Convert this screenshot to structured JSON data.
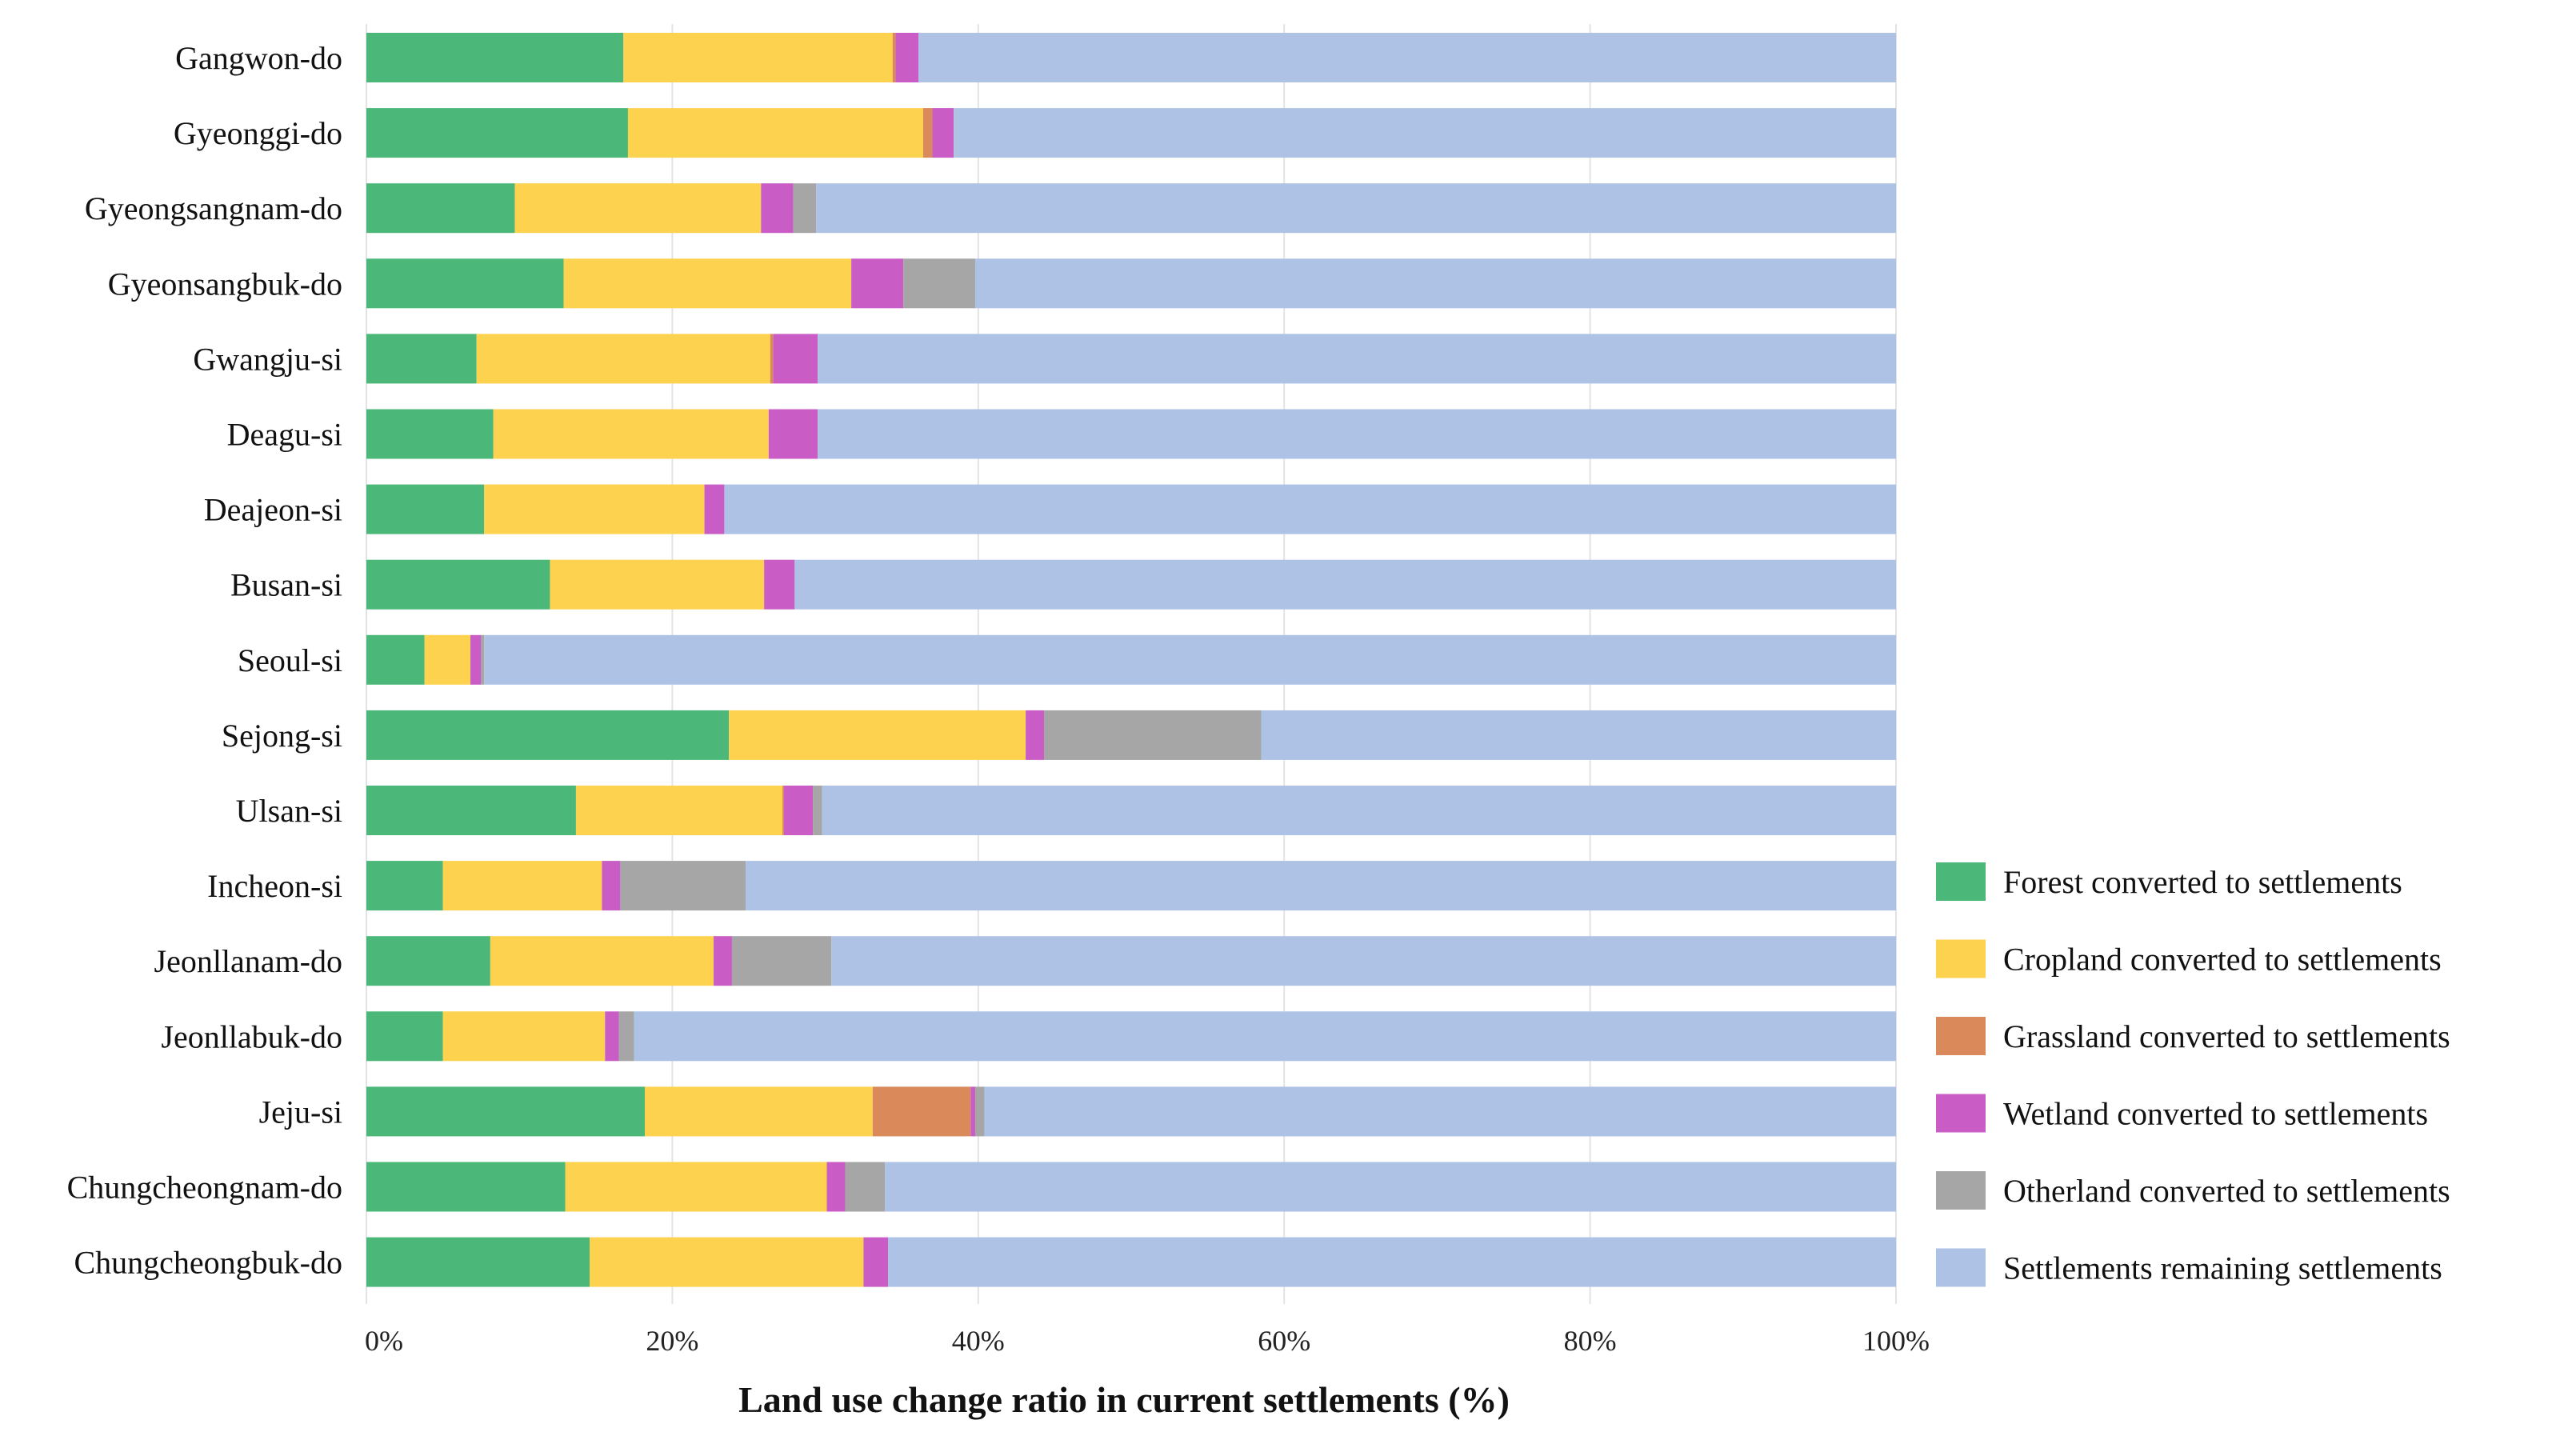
{
  "chart_data": {
    "type": "bar",
    "orientation": "horizontal",
    "stacked": true,
    "normalized_percent": true,
    "title": "",
    "xlabel": "Land use change ratio in current settlements (%)",
    "ylabel": "",
    "xlim": [
      0,
      100
    ],
    "x_ticks": [
      "0%",
      "20%",
      "40%",
      "60%",
      "80%",
      "100%"
    ],
    "grid": true,
    "legend_position": "right",
    "categories": [
      "Gangwon-do",
      "Gyeonggi-do",
      "Gyeongsangnam-do",
      "Gyeonsangbuk-do",
      "Gwangju-si",
      "Deagu-si",
      "Deajeon-si",
      "Busan-si",
      "Seoul-si",
      "Sejong-si",
      "Ulsan-si",
      "Incheon-si",
      "Jeonllanam-do",
      "Jeonllabuk-do",
      "Jeju-si",
      "Chungcheongnam-do",
      "Chungcheongbuk-do"
    ],
    "series": [
      {
        "name": "Forest converted to settlements",
        "color": "#4BB87A",
        "values": [
          16.8,
          17.1,
          9.7,
          12.9,
          7.2,
          8.3,
          7.7,
          12.0,
          3.8,
          23.7,
          13.7,
          5.0,
          8.1,
          5.0,
          18.2,
          13.0,
          14.6
        ]
      },
      {
        "name": "Cropland converted to settlements",
        "color": "#FDD24E",
        "values": [
          17.6,
          19.3,
          16.1,
          18.8,
          19.2,
          18.0,
          14.4,
          14.0,
          3.0,
          19.4,
          13.5,
          10.4,
          14.6,
          10.6,
          14.9,
          17.1,
          17.9
        ]
      },
      {
        "name": "Grassland converted to settlements",
        "color": "#D9895A",
        "values": [
          0.2,
          0.6,
          0,
          0,
          0.2,
          0,
          0,
          0,
          0,
          0,
          0.1,
          0,
          0,
          0,
          6.4,
          0,
          0
        ]
      },
      {
        "name": "Wetland converted to settlements",
        "color": "#C95DC5",
        "values": [
          1.5,
          1.4,
          2.1,
          3.4,
          2.9,
          3.2,
          1.3,
          2.0,
          0.7,
          1.2,
          1.9,
          1.2,
          1.2,
          0.9,
          0.3,
          1.2,
          1.6
        ]
      },
      {
        "name": "Otherland converted to settlements",
        "color": "#A6A6A6",
        "values": [
          0,
          0,
          1.5,
          4.7,
          0,
          0,
          0,
          0,
          0.2,
          14.2,
          0.6,
          8.2,
          6.5,
          1.0,
          0.6,
          2.6,
          0
        ]
      },
      {
        "name": "Settlements remaining settlements",
        "color": "#AEC2E6",
        "values": [
          63.9,
          61.6,
          70.6,
          60.2,
          70.5,
          70.5,
          76.6,
          72.0,
          92.3,
          41.5,
          70.2,
          75.2,
          69.6,
          82.5,
          59.6,
          66.1,
          65.9
        ]
      }
    ]
  }
}
